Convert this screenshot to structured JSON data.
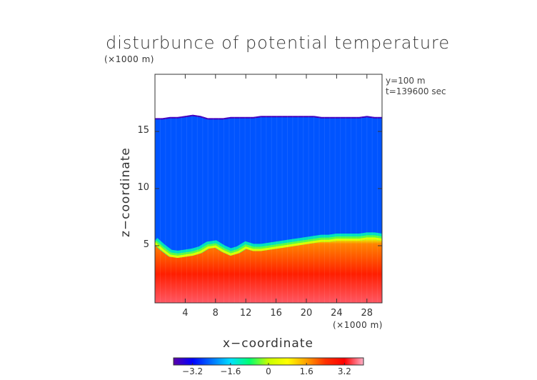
{
  "chart_data": {
    "type": "heatmap",
    "title": "disturbunce of potential temperature",
    "ylabel": "z−coordinate",
    "xlabel": "x−coordinate",
    "x_unit": "(×1000 m)",
    "y_unit": "(×1000 m)",
    "annotations": [
      "y=100 m",
      "t=139600 sec"
    ],
    "xlim": [
      0,
      30
    ],
    "ylim": [
      0,
      20
    ],
    "x_ticks": [
      4,
      8,
      12,
      16,
      20,
      24,
      28
    ],
    "x_tick_labels": [
      "4",
      "8",
      "12",
      "16",
      "20",
      "24",
      "28"
    ],
    "y_ticks": [
      5,
      10,
      15
    ],
    "y_tick_labels": [
      "5",
      "10",
      "15"
    ],
    "colorbar": {
      "range": [
        -4,
        4
      ],
      "ticks": [
        -3.2,
        -1.6,
        0,
        1.6,
        3.2
      ],
      "tick_labels": [
        "−3.2",
        "−1.6",
        "0",
        "1.6",
        "3.2"
      ],
      "colormap": [
        "#5a00a8",
        "#0000ff",
        "#0070ff",
        "#00e0ff",
        "#00ff70",
        "#c8ff00",
        "#ffff00",
        "#ffa000",
        "#ff3000",
        "#ff0000",
        "#ffb0c8"
      ]
    },
    "field": {
      "top_of_data_z": [
        16.1,
        16.1,
        16.2,
        16.2,
        16.3,
        16.4,
        16.3,
        16.1,
        16.1,
        16.1,
        16.2,
        16.2,
        16.2,
        16.2,
        16.3,
        16.3,
        16.3,
        16.3,
        16.3,
        16.3,
        16.3,
        16.3,
        16.2,
        16.2,
        16.2,
        16.2,
        16.2,
        16.2,
        16.3,
        16.2,
        16.2
      ],
      "boundary_z": [
        5.2,
        4.6,
        4.1,
        4.0,
        4.1,
        4.2,
        4.4,
        4.8,
        4.9,
        4.5,
        4.2,
        4.4,
        4.8,
        4.6,
        4.6,
        4.7,
        4.8,
        4.9,
        5.0,
        5.1,
        5.2,
        5.3,
        5.4,
        5.4,
        5.5,
        5.5,
        5.5,
        5.5,
        5.6,
        5.6,
        5.5
      ],
      "values": {
        "above_boundary": -2.6,
        "boundary_transition": 0.4,
        "below_boundary_mid": 1.8,
        "near_surface": 3.6
      }
    }
  }
}
